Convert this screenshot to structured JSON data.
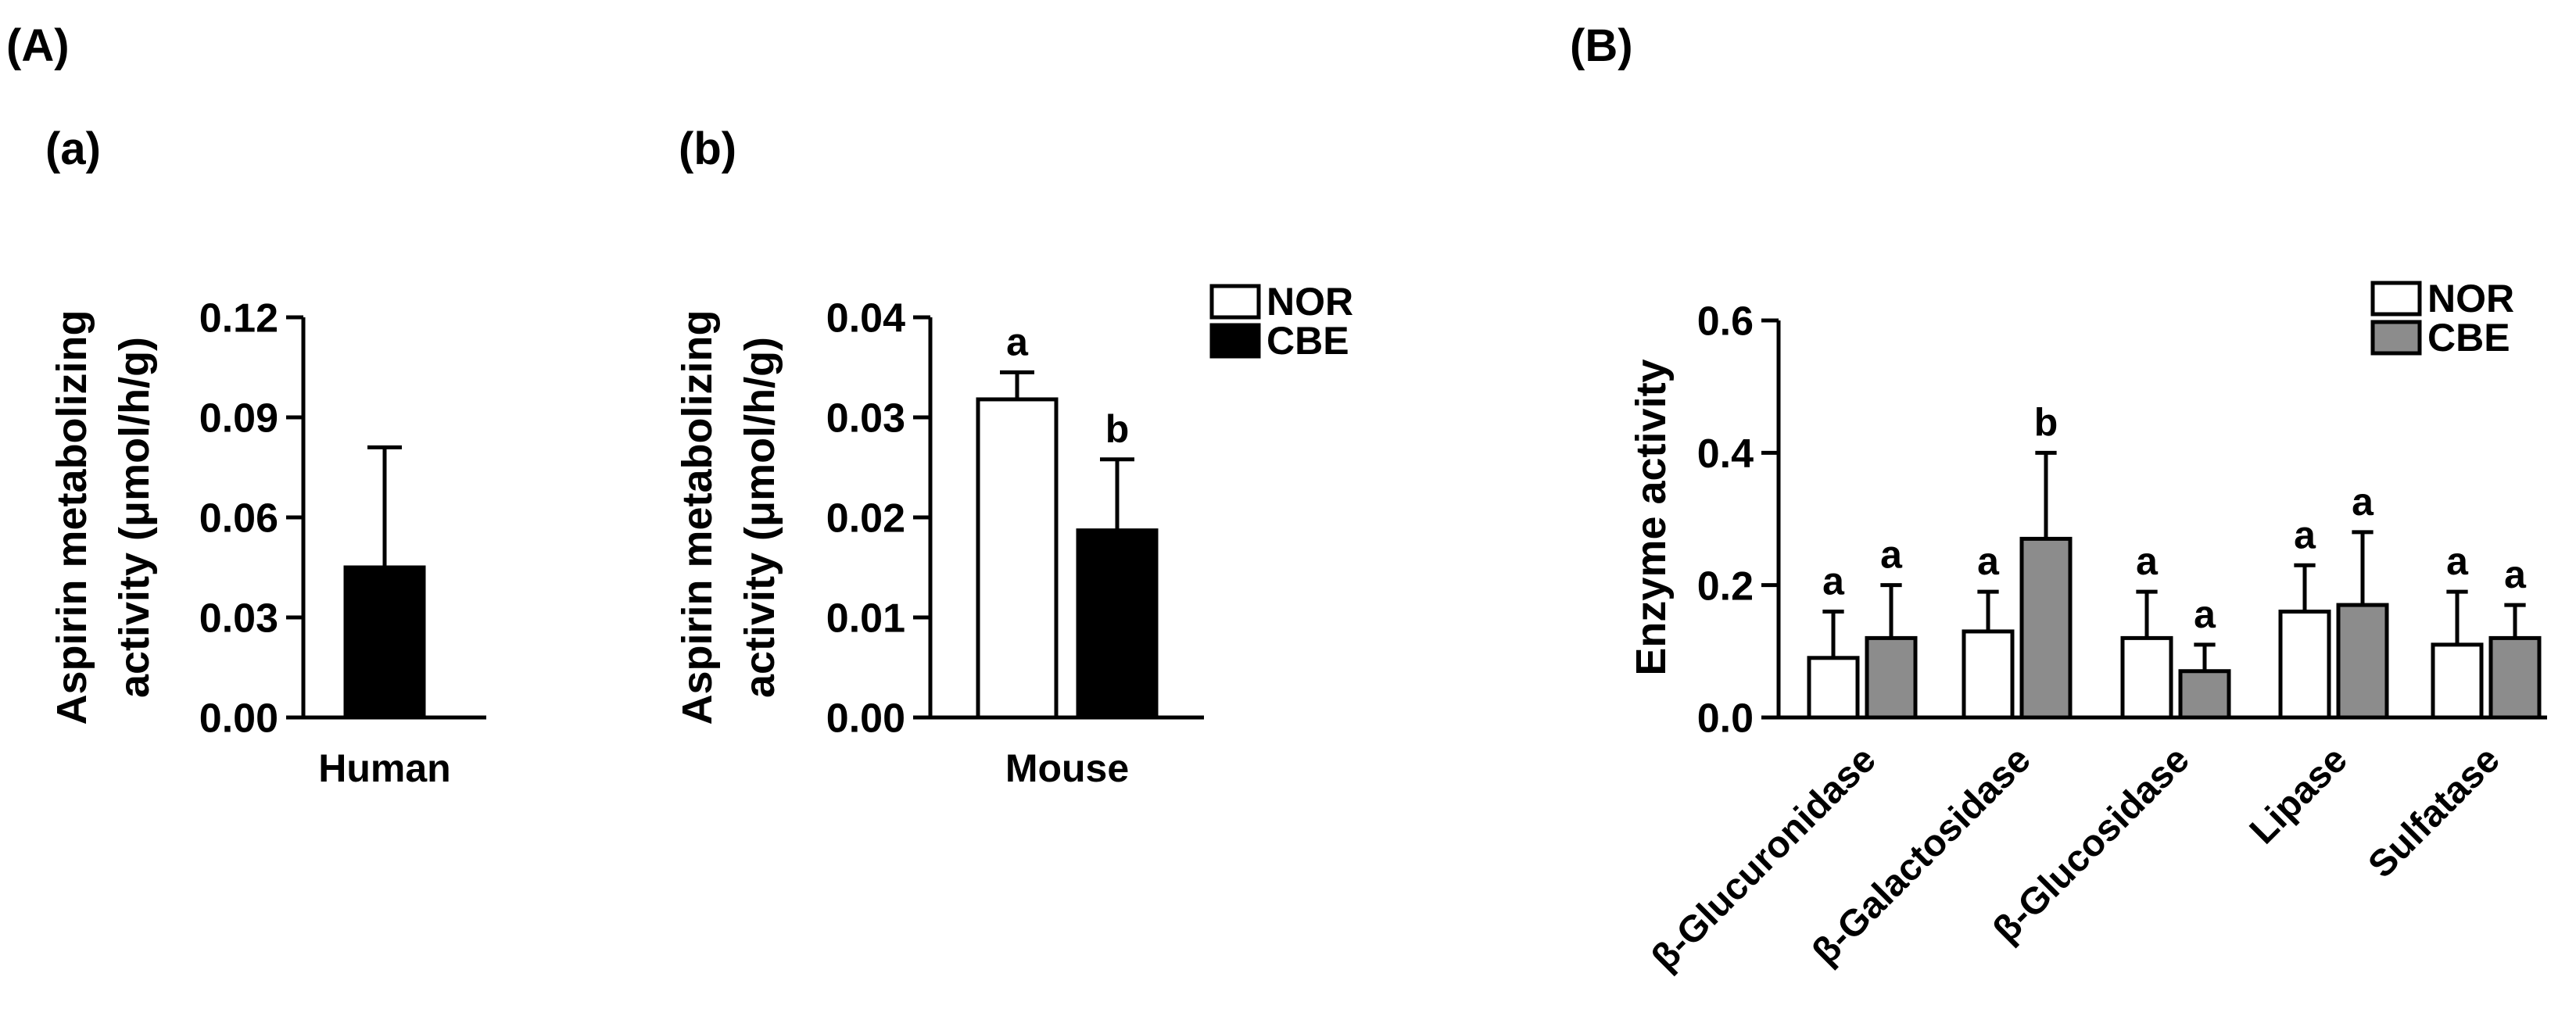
{
  "panels": {
    "A": "(A)",
    "B": "(B)",
    "a": "(a)",
    "b": "(b)"
  },
  "chart_data": [
    {
      "id": "a",
      "type": "bar",
      "categories": [
        "Human"
      ],
      "series": [
        {
          "values": [
            0.045
          ],
          "errors": [
            0.036
          ],
          "color": "#000000"
        }
      ],
      "ylabel_lines": [
        "Aspirin metabolizing",
        "activity (μmol/h/g)"
      ],
      "ylim": [
        0,
        0.12
      ],
      "yticks": [
        "0.00",
        "0.03",
        "0.06",
        "0.09",
        "0.12"
      ],
      "yticks_values": [
        0,
        0.03,
        0.06,
        0.09,
        0.12
      ]
    },
    {
      "id": "b",
      "type": "bar",
      "categories": [
        "Mouse"
      ],
      "series": [
        {
          "name": "NOR",
          "values": [
            0.0318
          ],
          "errors": [
            0.0027
          ],
          "letters": [
            "a"
          ],
          "color": "#ffffff"
        },
        {
          "name": "CBE",
          "values": [
            0.0187
          ],
          "errors": [
            0.0071
          ],
          "letters": [
            "b"
          ],
          "color": "#000000"
        }
      ],
      "ylabel_lines": [
        "Aspirin metabolizing",
        "activity (μmol/h/g)"
      ],
      "ylim": [
        0,
        0.04
      ],
      "yticks": [
        "0.00",
        "0.01",
        "0.02",
        "0.03",
        "0.04"
      ],
      "yticks_values": [
        0,
        0.01,
        0.02,
        0.03,
        0.04
      ],
      "legend": "top-right"
    },
    {
      "id": "B",
      "type": "bar",
      "categories": [
        "β-Glucuronidase",
        "β-Galactosidase",
        "β-Glucosidase",
        "Lipase",
        "Sulfatase"
      ],
      "series": [
        {
          "name": "NOR",
          "values": [
            0.09,
            0.13,
            0.12,
            0.16,
            0.11
          ],
          "errors": [
            0.07,
            0.06,
            0.07,
            0.07,
            0.08
          ],
          "letters": [
            "a",
            "a",
            "a",
            "a",
            "a"
          ],
          "color": "#ffffff"
        },
        {
          "name": "CBE",
          "values": [
            0.12,
            0.27,
            0.07,
            0.17,
            0.12
          ],
          "errors": [
            0.08,
            0.13,
            0.04,
            0.11,
            0.05
          ],
          "letters": [
            "a",
            "b",
            "a",
            "a",
            "a"
          ],
          "color": "#8c8c8c"
        }
      ],
      "ylabel_lines": [
        "Enzyme activity"
      ],
      "ylim": [
        0,
        0.6
      ],
      "yticks": [
        "0.0",
        "0.2",
        "0.4",
        "0.6"
      ],
      "yticks_values": [
        0,
        0.2,
        0.4,
        0.6
      ],
      "legend": "top-right"
    }
  ]
}
